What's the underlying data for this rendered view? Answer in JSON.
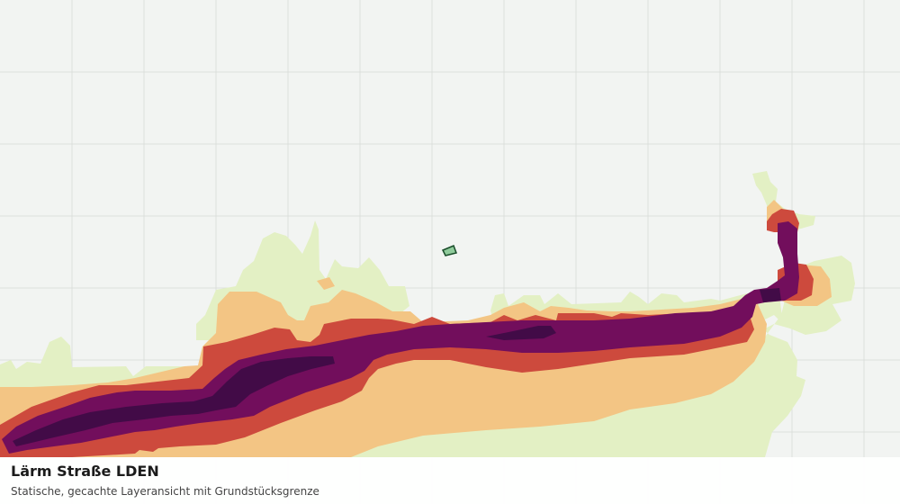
{
  "map": {
    "layer": "Lärm Straße LDEN",
    "colors": {
      "background": "#f2f4f2",
      "grid": "#dcdfdc",
      "band_lowest": "#e3f0c4",
      "band_low": "#f3c584",
      "band_mid": "#cd4a3d",
      "band_high": "#720e5c",
      "band_highest": "#420b47",
      "parcel_fill": "#8fcb9b",
      "parcel_outline": "#1a4d2a"
    }
  },
  "caption": {
    "title": "Lärm Straße LDEN",
    "subtitle": "Statische, gecachte Layeransicht mit Grundstücksgrenze"
  }
}
